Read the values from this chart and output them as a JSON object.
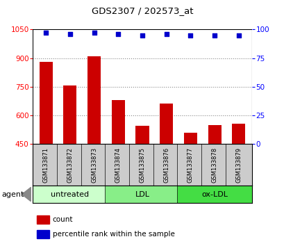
{
  "title": "GDS2307 / 202573_at",
  "samples": [
    "GSM133871",
    "GSM133872",
    "GSM133873",
    "GSM133874",
    "GSM133875",
    "GSM133876",
    "GSM133877",
    "GSM133878",
    "GSM133879"
  ],
  "counts": [
    880,
    755,
    910,
    680,
    545,
    660,
    510,
    550,
    555
  ],
  "percentile_ranks": [
    97,
    96,
    97,
    96,
    95,
    96,
    95,
    95,
    95
  ],
  "ylim_left": [
    450,
    1050
  ],
  "ylim_right": [
    0,
    100
  ],
  "yticks_left": [
    450,
    600,
    750,
    900,
    1050
  ],
  "yticks_right": [
    0,
    25,
    50,
    75,
    100
  ],
  "bar_color": "#cc0000",
  "dot_color": "#0000cc",
  "bar_bottom": 450,
  "groups": [
    {
      "label": "untreated",
      "indices": [
        0,
        1,
        2
      ],
      "color": "#ccffcc"
    },
    {
      "label": "LDL",
      "indices": [
        3,
        4,
        5
      ],
      "color": "#88ee88"
    },
    {
      "label": "ox-LDL",
      "indices": [
        6,
        7,
        8
      ],
      "color": "#44dd44"
    }
  ],
  "grid_color": "#888888",
  "background_color": "#ffffff",
  "sample_box_color": "#cccccc",
  "border_color": "#000000"
}
